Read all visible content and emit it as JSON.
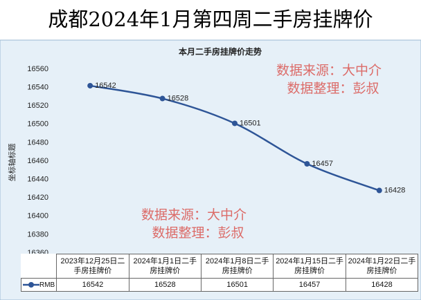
{
  "chart_data": {
    "type": "line",
    "page_title": "成都2024年1月第四周二手房挂牌价",
    "title": "本月二手房挂牌价走势",
    "y_label": "坐标轴标题",
    "categories": [
      "2023年12月25日二手房挂牌价",
      "2024年1月1日二手房挂牌价",
      "2024年1月8日二手房挂牌价",
      "2024年1月15日二手房挂牌价",
      "2024年1月22日二手房挂牌价"
    ],
    "series": [
      {
        "name": "RMB",
        "color": "#2e5597",
        "values": [
          16542,
          16528,
          16501,
          16457,
          16428
        ]
      }
    ],
    "ylim": [
      16360,
      16560
    ],
    "yticks": [
      16360,
      16380,
      16400,
      16420,
      16440,
      16460,
      16480,
      16500,
      16520,
      16540,
      16560
    ],
    "grid": false,
    "annotations": [
      {
        "lines": [
          "数据来源：大中介",
          "数据整理：彭叔"
        ],
        "color": "#d9534f"
      },
      {
        "lines": [
          "数据来源：大中介",
          "数据整理：彭叔"
        ],
        "color": "#d9534f"
      }
    ]
  }
}
